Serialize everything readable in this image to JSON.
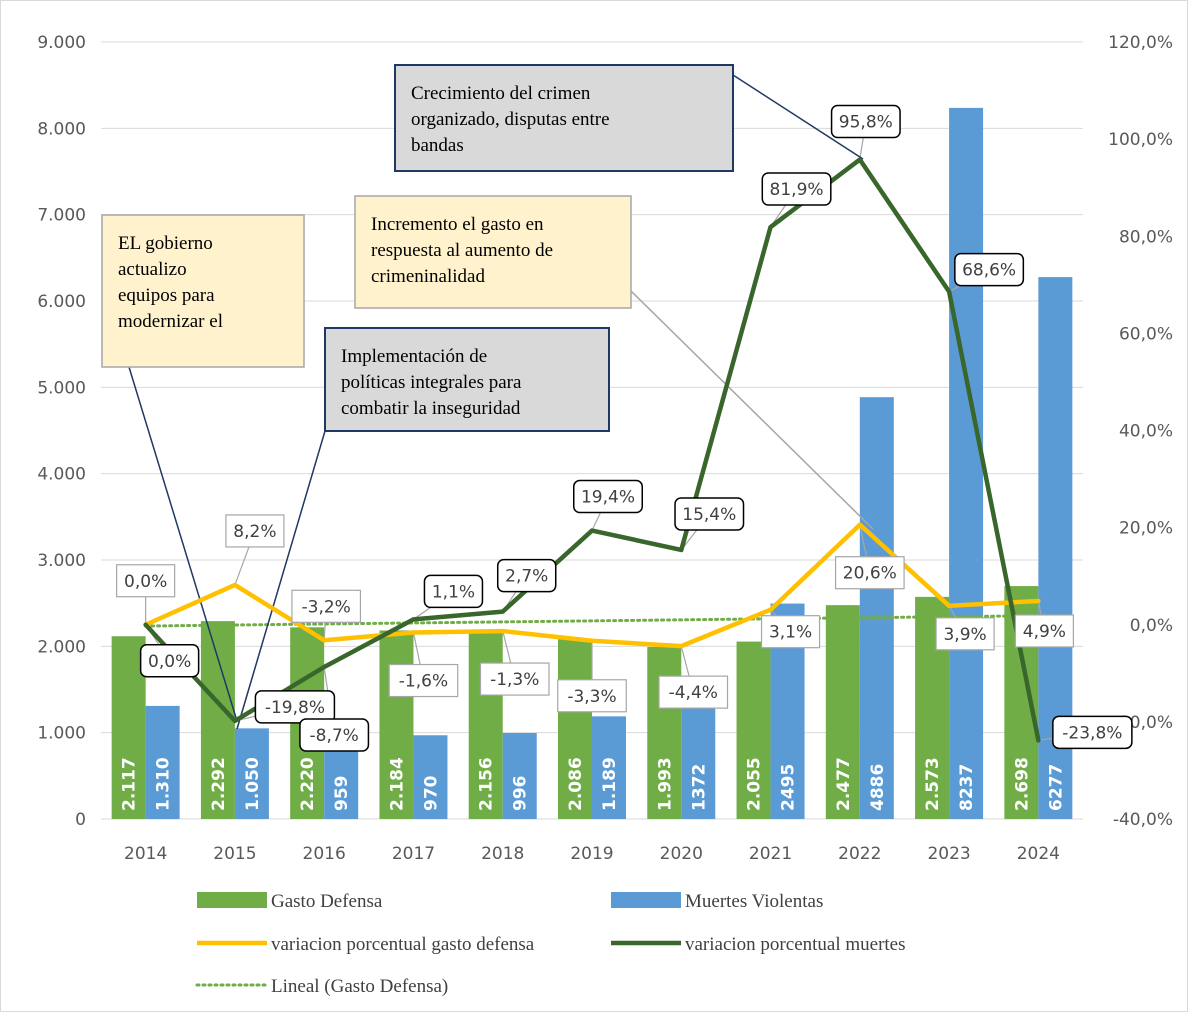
{
  "chart_data": {
    "type": "bar",
    "categories": [
      "2014",
      "2015",
      "2016",
      "2017",
      "2018",
      "2019",
      "2020",
      "2021",
      "2022",
      "2023",
      "2024"
    ],
    "y_left": {
      "min": 0,
      "max": 9000,
      "tick_labels": [
        "0",
        "1.000",
        "2.000",
        "3.000",
        "4.000",
        "5.000",
        "6.000",
        "7.000",
        "8.000",
        "9.000"
      ]
    },
    "y_right": {
      "min": -40,
      "max": 120,
      "tick_labels": [
        "-40,0%",
        "-20,0%",
        "0,0%",
        "20,0%",
        "40,0%",
        "60,0%",
        "80,0%",
        "100,0%",
        "120,0%"
      ]
    },
    "grid": "horizontal",
    "legend_position": "bottom",
    "colors": {
      "gasto": "#70ad47",
      "muertes": "#5b9bd5",
      "var_gasto": "#ffc000",
      "var_muertes": "#38662b",
      "trend": "#70ad47",
      "grid": "#d9d9d9",
      "axis_text": "#595959"
    },
    "series": [
      {
        "name": "Gasto Defensa",
        "type": "bar",
        "axis": "left",
        "values": [
          2117,
          2292,
          2220,
          2184,
          2156,
          2086,
          1993,
          2055,
          2477,
          2573,
          2698
        ],
        "labels": [
          "2.117",
          "2.292",
          "2.220",
          "2.184",
          "2.156",
          "2.086",
          "1.993",
          "2.055",
          "2.477",
          "2.573",
          "2.698"
        ]
      },
      {
        "name": "Muertes Violentas",
        "type": "bar",
        "axis": "left",
        "values": [
          1310,
          1050,
          959,
          970,
          996,
          1189,
          1372,
          2495,
          4886,
          8237,
          6277
        ],
        "labels": [
          "1.310",
          "1.050",
          "959",
          "970",
          "996",
          "1.189",
          "1372",
          "2495",
          "4886",
          "8237",
          "6277"
        ]
      },
      {
        "name": "variacion porcentual gasto defensa",
        "type": "line",
        "axis": "right",
        "values": [
          0.0,
          8.2,
          -3.2,
          -1.6,
          -1.3,
          -3.3,
          -4.4,
          3.1,
          20.6,
          3.9,
          4.9
        ],
        "labels": [
          "0,0%",
          "8,2%",
          "-3,2%",
          "-1,6%",
          "-1,3%",
          "-3,3%",
          "-4,4%",
          "3,1%",
          "20,6%",
          "3,9%",
          "4,9%"
        ]
      },
      {
        "name": "variacion porcentual muertes",
        "type": "line",
        "axis": "right",
        "values": [
          0.0,
          -19.8,
          -8.7,
          1.1,
          2.7,
          19.4,
          15.4,
          81.9,
          95.8,
          68.6,
          -23.8
        ],
        "labels": [
          "0,0%",
          "-19,8%",
          "-8,7%",
          "1,1%",
          "2,7%",
          "19,4%",
          "15,4%",
          "81,9%",
          "95,8%",
          "68,6%",
          "-23,8%"
        ]
      },
      {
        "name": "Lineal (Gasto Defensa)",
        "type": "trendline",
        "axis": "left",
        "values": [
          2235,
          2247,
          2259,
          2271,
          2283,
          2295,
          2307,
          2319,
          2331,
          2343,
          2355
        ]
      }
    ],
    "annotations": [
      {
        "lines": [
          "EL gobierno",
          "actualizo",
          "equipos para",
          "modernizar el"
        ],
        "style": "yellow"
      },
      {
        "lines": [
          "Implementación de",
          "políticas integrales para",
          "combatir la inseguridad"
        ],
        "style": "gray"
      },
      {
        "lines": [
          "Incremento el gasto en",
          "respuesta al aumento de",
          "crimeninalidad"
        ],
        "style": "yellow"
      },
      {
        "lines": [
          "Crecimiento del crimen",
          "organizado, disputas entre",
          "bandas"
        ],
        "style": "gray"
      }
    ]
  }
}
